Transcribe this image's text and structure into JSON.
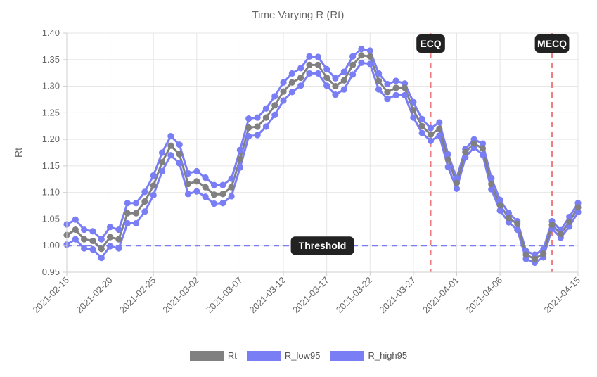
{
  "chart_data": {
    "type": "line",
    "title": "Time Varying R (Rt)",
    "xlabel": "",
    "ylabel": "Rt",
    "ylim": [
      0.95,
      1.4
    ],
    "yticks": [
      "0.95",
      "1.00",
      "1.05",
      "1.10",
      "1.15",
      "1.20",
      "1.25",
      "1.30",
      "1.35",
      "1.40"
    ],
    "x_tick_labels": [
      "2021-02-15",
      "2021-02-20",
      "2021-02-25",
      "2021-03-02",
      "2021-03-07",
      "2021-03-12",
      "2021-03-17",
      "2021-03-22",
      "2021-03-27",
      "2021-04-01",
      "2021-04-06",
      "2021-04-15"
    ],
    "x_start": "2021-02-15",
    "x_end": "2021-04-15",
    "grid": true,
    "legend_position": "bottom",
    "x": [
      "2021-02-15",
      "2021-02-16",
      "2021-02-17",
      "2021-02-18",
      "2021-02-19",
      "2021-02-20",
      "2021-02-21",
      "2021-02-22",
      "2021-02-23",
      "2021-02-24",
      "2021-02-25",
      "2021-02-26",
      "2021-02-27",
      "2021-02-28",
      "2021-03-01",
      "2021-03-02",
      "2021-03-03",
      "2021-03-04",
      "2021-03-05",
      "2021-03-06",
      "2021-03-07",
      "2021-03-08",
      "2021-03-09",
      "2021-03-10",
      "2021-03-11",
      "2021-03-12",
      "2021-03-13",
      "2021-03-14",
      "2021-03-15",
      "2021-03-16",
      "2021-03-17",
      "2021-03-18",
      "2021-03-19",
      "2021-03-20",
      "2021-03-21",
      "2021-03-22",
      "2021-03-23",
      "2021-03-24",
      "2021-03-25",
      "2021-03-26",
      "2021-03-27",
      "2021-03-28",
      "2021-03-29",
      "2021-03-30",
      "2021-03-31",
      "2021-04-01",
      "2021-04-02",
      "2021-04-03",
      "2021-04-04",
      "2021-04-05",
      "2021-04-06",
      "2021-04-07",
      "2021-04-08",
      "2021-04-09",
      "2021-04-10",
      "2021-04-11",
      "2021-04-12",
      "2021-04-13",
      "2021-04-14",
      "2021-04-15"
    ],
    "series": [
      {
        "name": "Rt",
        "color": "#808080",
        "values": [
          1.02,
          1.03,
          1.012,
          1.009,
          0.994,
          1.016,
          1.012,
          1.061,
          1.061,
          1.083,
          1.113,
          1.157,
          1.188,
          1.172,
          1.116,
          1.121,
          1.11,
          1.096,
          1.097,
          1.11,
          1.163,
          1.222,
          1.224,
          1.241,
          1.264,
          1.29,
          1.307,
          1.316,
          1.34,
          1.34,
          1.316,
          1.3,
          1.311,
          1.34,
          1.358,
          1.356,
          1.31,
          1.289,
          1.297,
          1.297,
          1.255,
          1.225,
          1.209,
          1.22,
          1.162,
          1.118,
          1.176,
          1.192,
          1.183,
          1.116,
          1.076,
          1.052,
          1.041,
          0.983,
          0.975,
          0.985,
          1.039,
          1.022,
          1.045,
          1.072
        ]
      },
      {
        "name": "R_low95",
        "color": "#7a7ef5",
        "values": [
          1.002,
          1.012,
          0.995,
          0.993,
          0.977,
          0.999,
          0.995,
          1.042,
          1.042,
          1.064,
          1.095,
          1.14,
          1.17,
          1.155,
          1.097,
          1.102,
          1.092,
          1.079,
          1.08,
          1.093,
          1.147,
          1.206,
          1.208,
          1.224,
          1.246,
          1.273,
          1.289,
          1.301,
          1.324,
          1.324,
          1.301,
          1.284,
          1.294,
          1.322,
          1.344,
          1.342,
          1.294,
          1.276,
          1.283,
          1.283,
          1.241,
          1.212,
          1.197,
          1.207,
          1.148,
          1.107,
          1.166,
          1.185,
          1.171,
          1.106,
          1.066,
          1.044,
          1.03,
          0.975,
          0.968,
          0.978,
          1.032,
          1.015,
          1.036,
          1.063
        ]
      },
      {
        "name": "R_high95",
        "color": "#7a7ef5",
        "values": [
          1.04,
          1.049,
          1.03,
          1.027,
          1.012,
          1.035,
          1.03,
          1.08,
          1.08,
          1.101,
          1.132,
          1.175,
          1.206,
          1.19,
          1.136,
          1.14,
          1.128,
          1.114,
          1.114,
          1.126,
          1.18,
          1.239,
          1.241,
          1.258,
          1.281,
          1.307,
          1.324,
          1.334,
          1.356,
          1.355,
          1.332,
          1.315,
          1.327,
          1.356,
          1.37,
          1.367,
          1.324,
          1.304,
          1.31,
          1.305,
          1.27,
          1.238,
          1.221,
          1.232,
          1.172,
          1.127,
          1.182,
          1.2,
          1.192,
          1.127,
          1.086,
          1.061,
          1.046,
          0.99,
          0.983,
          0.993,
          1.046,
          1.029,
          1.054,
          1.08
        ]
      }
    ],
    "annotations": {
      "threshold": {
        "label": "Threshold",
        "value": 1.0,
        "color": "#7a7ef5"
      },
      "ecq": {
        "label": "ECQ",
        "date": "2021-03-29",
        "color": "#f07c82"
      },
      "mecq": {
        "label": "MECQ",
        "date": "2021-04-12",
        "color": "#f07c82"
      }
    }
  }
}
